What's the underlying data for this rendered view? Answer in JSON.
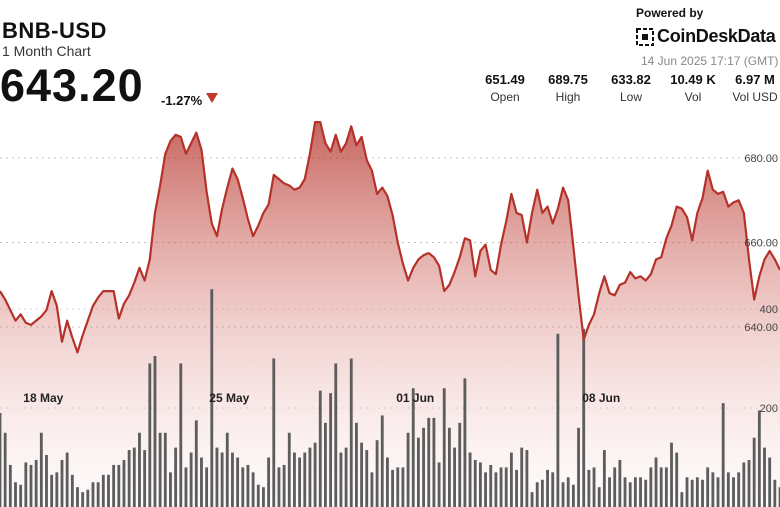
{
  "header": {
    "symbol": "BNB-USD",
    "subtitle": "1 Month Chart",
    "price": "643.20",
    "change": "-1.27%"
  },
  "branding": {
    "powered_by": "Powered by",
    "brand": "CoinDeskData",
    "timestamp": "14 Jun 2025 17:17 (GMT)"
  },
  "stats": [
    {
      "value": "651.49",
      "label": "Open"
    },
    {
      "value": "689.75",
      "label": "High"
    },
    {
      "value": "633.82",
      "label": "Low"
    },
    {
      "value": "10.49 K",
      "label": "Vol"
    },
    {
      "value": "6.97 M",
      "label": "Vol USD"
    }
  ],
  "colors": {
    "line": "#b5322a",
    "volume": "#5d5d5d",
    "down": "#c0392b"
  },
  "chart_data": {
    "type": "area",
    "title": "BNB-USD",
    "subtitle": "1 Month Chart",
    "x_ticks": [
      "18 May",
      "25 May",
      "01 Jun",
      "08 Jun"
    ],
    "y_ticks": [
      640,
      660,
      680
    ],
    "ylim": [
      632,
      700
    ],
    "volume_ticks": [
      200,
      400
    ],
    "volume_lim": [
      0,
      500
    ],
    "grid": true,
    "price": [
      648.5,
      646.5,
      644.0,
      641.5,
      643.0,
      641.0,
      640.5,
      641.5,
      642.5,
      644.0,
      648.5,
      645.0,
      636.5,
      641.5,
      637.5,
      634.0,
      638.0,
      641.5,
      645.0,
      647.0,
      648.5,
      648.5,
      648.5,
      642.0,
      645.5,
      647.5,
      650.5,
      654.0,
      651.0,
      656.0,
      667.0,
      673.5,
      681.0,
      684.0,
      685.5,
      685.0,
      681.0,
      683.5,
      686.0,
      682.0,
      672.0,
      664.5,
      661.5,
      668.0,
      673.0,
      677.5,
      675.0,
      670.5,
      665.5,
      661.5,
      664.0,
      667.0,
      669.0,
      676.0,
      675.0,
      674.0,
      673.5,
      672.5,
      673.0,
      675.0,
      681.0,
      688.5,
      688.5,
      683.5,
      681.5,
      685.5,
      681.5,
      683.5,
      687.5,
      683.0,
      685.0,
      679.5,
      677.0,
      671.5,
      673.0,
      671.0,
      666.5,
      660.0,
      655.0,
      651.0,
      654.0,
      656.0,
      657.0,
      657.5,
      656.5,
      654.5,
      648.5,
      650.0,
      653.0,
      656.5,
      661.0,
      660.5,
      652.0,
      658.0,
      659.5,
      653.5,
      652.5,
      659.5,
      665.0,
      671.5,
      667.0,
      666.5,
      660.0,
      667.0,
      672.5,
      667.0,
      668.5,
      664.5,
      668.0,
      673.0,
      670.0,
      659.0,
      647.5,
      637.0,
      640.5,
      643.0,
      648.0,
      652.0,
      648.0,
      647.5,
      650.0,
      650.5,
      653.0,
      651.5,
      652.0,
      651.0,
      652.5,
      656.0,
      656.5,
      661.0,
      664.0,
      668.5,
      668.0,
      666.0,
      660.5,
      667.0,
      670.5,
      677.0,
      672.5,
      671.5,
      672.0,
      668.5,
      669.5,
      670.0,
      667.0,
      656.0,
      646.5,
      652.0,
      656.0,
      658.0,
      656.0,
      653.5
    ],
    "volume": [
      190,
      150,
      85,
      50,
      45,
      90,
      85,
      95,
      150,
      105,
      65,
      70,
      95,
      110,
      65,
      40,
      30,
      35,
      50,
      50,
      65,
      65,
      85,
      85,
      95,
      115,
      120,
      150,
      115,
      290,
      305,
      150,
      150,
      70,
      120,
      290,
      80,
      110,
      175,
      100,
      80,
      440,
      120,
      110,
      150,
      110,
      100,
      80,
      85,
      70,
      45,
      40,
      100,
      300,
      80,
      85,
      150,
      110,
      100,
      110,
      120,
      130,
      235,
      170,
      230,
      290,
      110,
      120,
      300,
      170,
      130,
      115,
      70,
      135,
      185,
      100,
      75,
      80,
      80,
      150,
      240,
      140,
      160,
      180,
      180,
      90,
      240,
      160,
      120,
      170,
      260,
      110,
      95,
      90,
      70,
      85,
      70,
      80,
      80,
      110,
      75,
      120,
      115,
      30,
      50,
      55,
      75,
      70,
      350,
      50,
      60,
      45,
      160,
      360,
      75,
      80,
      40,
      115,
      60,
      80,
      95,
      60,
      50,
      60,
      60,
      55,
      80,
      100,
      80,
      80,
      130,
      110,
      30,
      60,
      55,
      60,
      55,
      80,
      70,
      60,
      210,
      70,
      60,
      70,
      90,
      95,
      140,
      195,
      120,
      100,
      55,
      40
    ]
  }
}
